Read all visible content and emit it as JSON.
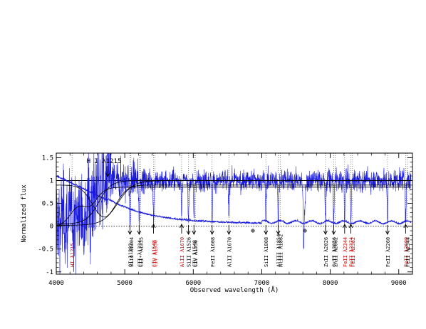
{
  "chart_data": {
    "type": "line",
    "xlabel": "Observed wavelength (Å)",
    "ylabel": "Normalized flux",
    "xlim": [
      4000,
      9200
    ],
    "ylim": [
      -1.05,
      1.6
    ],
    "x_ticks": [
      4000,
      5000,
      6000,
      7000,
      8000,
      9000
    ],
    "y_ticks": [
      -1,
      -0.5,
      0,
      0.5,
      1,
      1.5
    ],
    "y_tick_labels": [
      "-1",
      "-0.5",
      "0",
      "0.5",
      "1",
      "1.5"
    ],
    "reference_lines": [
      {
        "y": 1.0,
        "style": "solid"
      },
      {
        "y": 0.0,
        "style": "dotted"
      }
    ],
    "series": [
      {
        "role": "flux",
        "color": "#1a1adc"
      },
      {
        "role": "error",
        "color": "#1a1adc"
      },
      {
        "role": "model",
        "color": "#000000"
      }
    ],
    "lya": {
      "label": "H I λ1215",
      "x": 4750
    },
    "line_marks": [
      {
        "label": "HI λ1215",
        "x": 4230,
        "color": "#cc0000",
        "arrow": "none"
      },
      {
        "label": "OI λ1302",
        "x": 5075,
        "color": "#000000",
        "arrow": "down"
      },
      {
        "label": "SiII λ1304",
        "x": 5090,
        "color": "#000000",
        "arrow": "none"
      },
      {
        "label": "CII λ1334",
        "x": 5210,
        "color": "#000000",
        "arrow": "down"
      },
      {
        "label": "CII* λ1335",
        "x": 5230,
        "color": "#000000",
        "arrow": "none"
      },
      {
        "label": "CIV λ1548",
        "x": 5420,
        "color": "#cc0000",
        "arrow": "up"
      },
      {
        "label": "CIV λ1550",
        "x": 5440,
        "color": "#cc0000",
        "arrow": "none"
      },
      {
        "label": "AlII λ1670",
        "x": 5830,
        "color": "#cc0000",
        "arrow": "up"
      },
      {
        "label": "SiII λ1526",
        "x": 5930,
        "color": "#000000",
        "arrow": "down"
      },
      {
        "label": "CIV λ1548",
        "x": 6010,
        "color": "#000000",
        "arrow": "down"
      },
      {
        "label": "CIV λ1550",
        "x": 6030,
        "color": "#000000",
        "arrow": "none"
      },
      {
        "label": "FeII λ1608",
        "x": 6275,
        "color": "#000000",
        "arrow": "down"
      },
      {
        "label": "AlII λ1670",
        "x": 6520,
        "color": "#000000",
        "arrow": "down"
      },
      {
        "label": "SiII λ1808",
        "x": 7060,
        "color": "#000000",
        "arrow": "down"
      },
      {
        "label": "AlIII λ1854",
        "x": 7240,
        "color": "#000000",
        "arrow": "down"
      },
      {
        "label": "AlIII λ1862",
        "x": 7270,
        "color": "#000000",
        "arrow": "none"
      },
      {
        "label": "ZnII λ2026",
        "x": 7930,
        "color": "#000000",
        "arrow": "down"
      },
      {
        "label": "CrII λ2056",
        "x": 8050,
        "color": "#000000",
        "arrow": "down"
      },
      {
        "label": "ZnII λ2062",
        "x": 8070,
        "color": "#000000",
        "arrow": "none"
      },
      {
        "label": "FeII λ2344",
        "x": 8210,
        "color": "#cc0000",
        "arrow": "up"
      },
      {
        "label": "FeII λ2374",
        "x": 8300,
        "color": "#cc0000",
        "arrow": "up"
      },
      {
        "label": "FeII λ2382",
        "x": 8325,
        "color": "#cc0000",
        "arrow": "none"
      },
      {
        "label": "FeII λ2260",
        "x": 8835,
        "color": "#000000",
        "arrow": "down"
      },
      {
        "label": "FeII λ2600",
        "x": 9100,
        "color": "#cc0000",
        "arrow": "up"
      },
      {
        "label": "FeII λ2344",
        "x": 9125,
        "color": "#000000",
        "arrow": "none"
      }
    ],
    "telluric_marks": [
      {
        "x": 6870
      },
      {
        "x": 7630
      }
    ],
    "colors": {
      "flux": "#1a1adc",
      "model": "#000000",
      "ion_red": "#cc0000",
      "ion_black": "#000000"
    }
  }
}
